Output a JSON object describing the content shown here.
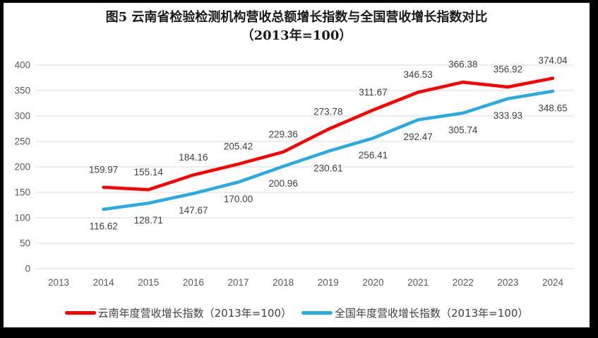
{
  "chart": {
    "title_line1": "图5  云南省检验检测机构营收总额增长指数与全国营收增长指数对比",
    "title_line2": "（2013年=100）"
  },
  "chart_data": {
    "type": "line",
    "categories": [
      "2013",
      "2014",
      "2015",
      "2016",
      "2017",
      "2018",
      "2019",
      "2020",
      "2021",
      "2022",
      "2023",
      "2024"
    ],
    "series": [
      {
        "name": "云南年度营收增长指数（2013年=100）",
        "color": "#FF0000",
        "label_side": "above",
        "values": [
          null,
          159.97,
          155.14,
          184.16,
          205.42,
          229.36,
          273.78,
          311.67,
          346.53,
          366.38,
          356.92,
          374.04
        ]
      },
      {
        "name": "全国年度营收增长指数（2013年=100）",
        "color": "#29ABE2",
        "label_side": "below",
        "values": [
          null,
          116.62,
          128.71,
          147.67,
          170.0,
          200.96,
          230.61,
          256.41,
          292.47,
          305.74,
          333.93,
          348.65
        ]
      }
    ],
    "title": "图5 云南省检验检测机构营收总额增长指数与全国营收增长指数对比（2013年=100）",
    "xlabel": "",
    "ylabel": "",
    "ylim": [
      0,
      400
    ],
    "ytick_step": 50,
    "grid": true,
    "grid_color": "#D9D9D9",
    "axis_text_color": "#595959",
    "data_label_color": "#404040",
    "legend_position": "bottom"
  }
}
